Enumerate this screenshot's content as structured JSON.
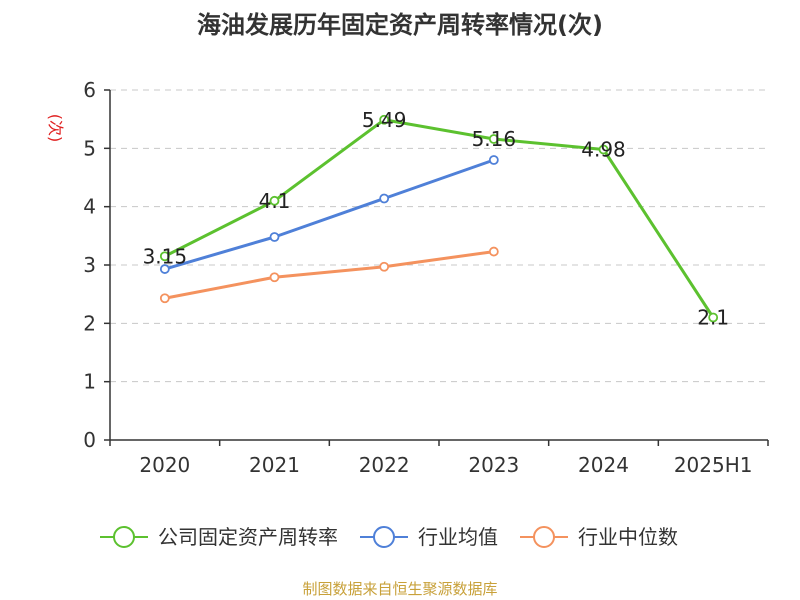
{
  "chart_data": {
    "type": "line",
    "title": "海油发展历年固定资产周转率情况(次)",
    "ylabel": "(次)",
    "xlabel": "",
    "categories": [
      "2020",
      "2021",
      "2022",
      "2023",
      "2024",
      "2025H1"
    ],
    "ylim": [
      0,
      6
    ],
    "yticks": [
      "0",
      "1",
      "2",
      "3",
      "4",
      "5",
      "6"
    ],
    "grid": true,
    "legend_position": "bottom",
    "series": [
      {
        "name": "公司固定资产周转率",
        "color": "#5cc12f",
        "values": [
          3.15,
          4.1,
          5.49,
          5.16,
          4.98,
          2.1
        ],
        "labels": [
          "3.15",
          "4.1",
          "5.49",
          "5.16",
          "4.98",
          "2.1"
        ]
      },
      {
        "name": "行业均值",
        "color": "#4f80d8",
        "values": [
          2.93,
          3.48,
          4.14,
          4.8,
          null,
          null
        ]
      },
      {
        "name": "行业中位数",
        "color": "#f4925e",
        "values": [
          2.43,
          2.79,
          2.97,
          3.23,
          null,
          null
        ]
      }
    ]
  },
  "source_note": "制图数据来自恒生聚源数据库"
}
